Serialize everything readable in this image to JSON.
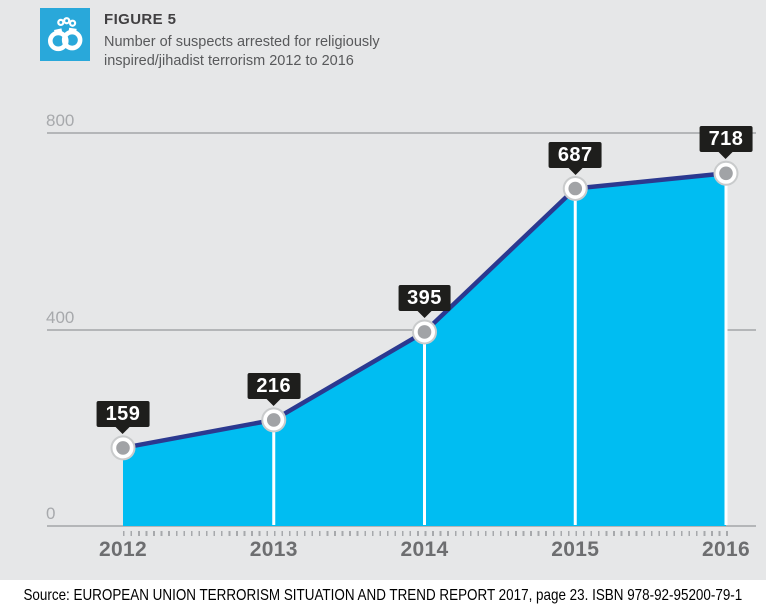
{
  "header": {
    "figure_label": "FIGURE 5",
    "subtitle_lines": [
      "Number of suspects arrested for religiously",
      "inspired/jihadist terrorism 2012 to 2016"
    ],
    "icon": "handcuffs-icon"
  },
  "chart_data": {
    "type": "area",
    "title": "Number of suspects arrested for religiously inspired/jihadist terrorism 2012 to 2016",
    "categories": [
      "2012",
      "2013",
      "2014",
      "2015",
      "2016"
    ],
    "values": [
      159,
      216,
      395,
      687,
      718
    ],
    "ylim": [
      0,
      800
    ],
    "yticks": [
      0,
      400,
      800
    ],
    "grid": true,
    "legend": "none",
    "value_labels": true,
    "area_color": "#00bdf2",
    "line_color": "#2b3990",
    "marker": "white circle with gray center"
  },
  "footer": {
    "source_text": "Source: EUROPEAN UNION TERRORISM SITUATION AND TREND REPORT 2017, page 23. ISBN 978-92-95200-79-1"
  },
  "colors": {
    "background": "#e6e7e8",
    "footer_background": "#ffffff",
    "icon_background": "#29a8da",
    "area_fill": "#00bdf2",
    "line": "#2b3990",
    "value_label_background": "#1e1e1c",
    "value_label_text": "#ffffff",
    "marker_inner": "#a1a3a6",
    "marker_ring": "#c9cbcc",
    "gridline": "#b4b6b8",
    "y_axis_text": "#a7a9ac",
    "x_axis_text": "#6d6e70"
  }
}
